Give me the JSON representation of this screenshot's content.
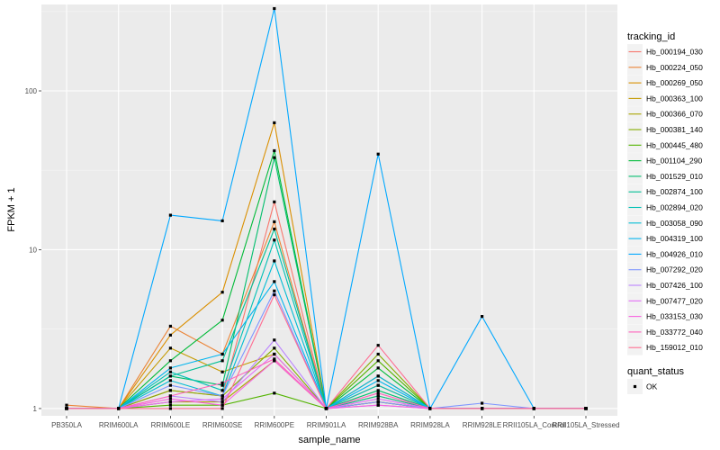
{
  "chart_data": {
    "type": "line",
    "xlabel": "sample_name",
    "ylabel": "FPKM + 1",
    "y_scale": "log10",
    "ylim": [
      0.9,
      350
    ],
    "y_ticks": [
      {
        "value": 1,
        "label": "1"
      },
      {
        "value": 10,
        "label": "10"
      },
      {
        "value": 100,
        "label": "100"
      }
    ],
    "grid": true,
    "legend_position": "right",
    "categories": [
      "PB350LA",
      "RRIM600LA",
      "RRIM600LE",
      "RRIM600SE",
      "RRIM600PE",
      "RRIM901LA",
      "RRIM928BA",
      "RRIM928LA",
      "RRIM928LE",
      "RRII105LA_Control",
      "RRII105LA_Stressed"
    ],
    "legend_title": "tracking_id",
    "series": [
      {
        "name": "Hb_000194_030",
        "color": "#F8766D",
        "values": [
          1.0,
          1.0,
          1.3,
          1.2,
          20.0,
          1.0,
          1.6,
          1.0,
          1.0,
          1.0,
          1.0
        ]
      },
      {
        "name": "Hb_000224_050",
        "color": "#EB8335",
        "values": [
          1.05,
          1.0,
          3.3,
          2.2,
          15.0,
          1.0,
          1.4,
          1.0,
          1.0,
          1.0,
          1.0
        ]
      },
      {
        "name": "Hb_000269_050",
        "color": "#DA8F00",
        "values": [
          1.0,
          1.0,
          2.9,
          5.4,
          63.0,
          1.0,
          1.2,
          1.0,
          1.0,
          1.0,
          1.0
        ]
      },
      {
        "name": "Hb_000363_100",
        "color": "#C49A00",
        "values": [
          1.0,
          1.0,
          2.4,
          1.7,
          2.2,
          1.0,
          1.1,
          1.0,
          1.0,
          1.0,
          1.0
        ]
      },
      {
        "name": "Hb_000366_070",
        "color": "#A9A400",
        "values": [
          1.0,
          1.0,
          1.1,
          1.1,
          2.0,
          1.0,
          1.1,
          1.0,
          1.0,
          1.0,
          1.0
        ]
      },
      {
        "name": "Hb_000381_140",
        "color": "#86AC00",
        "values": [
          1.0,
          1.0,
          1.3,
          1.2,
          2.4,
          1.0,
          2.2,
          1.0,
          1.0,
          1.0,
          1.0
        ]
      },
      {
        "name": "Hb_000445_480",
        "color": "#53B400",
        "values": [
          1.0,
          1.0,
          1.05,
          1.05,
          1.25,
          1.0,
          2.0,
          1.0,
          1.0,
          1.0,
          1.0
        ]
      },
      {
        "name": "Hb_001104_290",
        "color": "#00BA38",
        "values": [
          1.0,
          1.0,
          2.0,
          3.6,
          42.0,
          1.0,
          1.8,
          1.0,
          1.0,
          1.0,
          1.0
        ]
      },
      {
        "name": "Hb_001529_010",
        "color": "#00BE6C",
        "values": [
          1.0,
          1.0,
          1.6,
          1.4,
          38.0,
          1.0,
          1.3,
          1.0,
          1.0,
          1.0,
          1.0
        ]
      },
      {
        "name": "Hb_002874_100",
        "color": "#00C094",
        "values": [
          1.0,
          1.0,
          1.6,
          2.0,
          13.5,
          1.0,
          1.2,
          1.0,
          1.0,
          1.0,
          1.0
        ]
      },
      {
        "name": "Hb_002894_020",
        "color": "#00C0B5",
        "values": [
          1.0,
          1.0,
          1.7,
          1.3,
          11.5,
          1.0,
          1.4,
          1.0,
          1.0,
          1.0,
          1.0
        ]
      },
      {
        "name": "Hb_003058_090",
        "color": "#00BCD4",
        "values": [
          1.0,
          1.0,
          1.5,
          1.2,
          8.5,
          1.0,
          1.6,
          1.0,
          1.0,
          1.0,
          1.0
        ]
      },
      {
        "name": "Hb_004319_100",
        "color": "#00B5EE",
        "values": [
          1.0,
          1.0,
          1.8,
          2.2,
          6.3,
          1.0,
          1.5,
          1.0,
          1.0,
          1.0,
          1.0
        ]
      },
      {
        "name": "Hb_004926_010",
        "color": "#00A8FF",
        "values": [
          1.0,
          1.0,
          16.5,
          15.2,
          330.0,
          1.0,
          40.0,
          1.0,
          3.8,
          1.0,
          1.0
        ]
      },
      {
        "name": "Hb_007292_020",
        "color": "#7F96FF",
        "values": [
          1.0,
          1.0,
          1.4,
          1.2,
          5.5,
          1.0,
          1.1,
          1.0,
          1.08,
          1.0,
          1.0
        ]
      },
      {
        "name": "Hb_007426_100",
        "color": "#BB83FF",
        "values": [
          1.0,
          1.0,
          1.2,
          1.1,
          2.7,
          1.0,
          1.05,
          1.0,
          1.0,
          1.0,
          1.0
        ]
      },
      {
        "name": "Hb_007477_020",
        "color": "#E36EF6",
        "values": [
          1.0,
          1.0,
          1.1,
          1.15,
          2.2,
          1.0,
          1.15,
          1.0,
          1.0,
          1.0,
          1.0
        ]
      },
      {
        "name": "Hb_033153_030",
        "color": "#F863DF",
        "values": [
          1.0,
          1.0,
          1.15,
          1.05,
          2.0,
          1.0,
          1.05,
          1.0,
          1.0,
          1.0,
          1.0
        ]
      },
      {
        "name": "Hb_033772_040",
        "color": "#FF62BC",
        "values": [
          1.0,
          1.0,
          1.2,
          1.45,
          2.05,
          1.0,
          1.25,
          1.0,
          1.0,
          1.0,
          1.0
        ]
      },
      {
        "name": "Hb_159012_010",
        "color": "#FF6C91",
        "values": [
          1.0,
          1.0,
          1.0,
          1.0,
          5.2,
          1.0,
          2.5,
          1.0,
          1.0,
          1.0,
          1.0
        ]
      }
    ],
    "shape_legend": {
      "title": "quant_status",
      "items": [
        "OK"
      ]
    }
  }
}
